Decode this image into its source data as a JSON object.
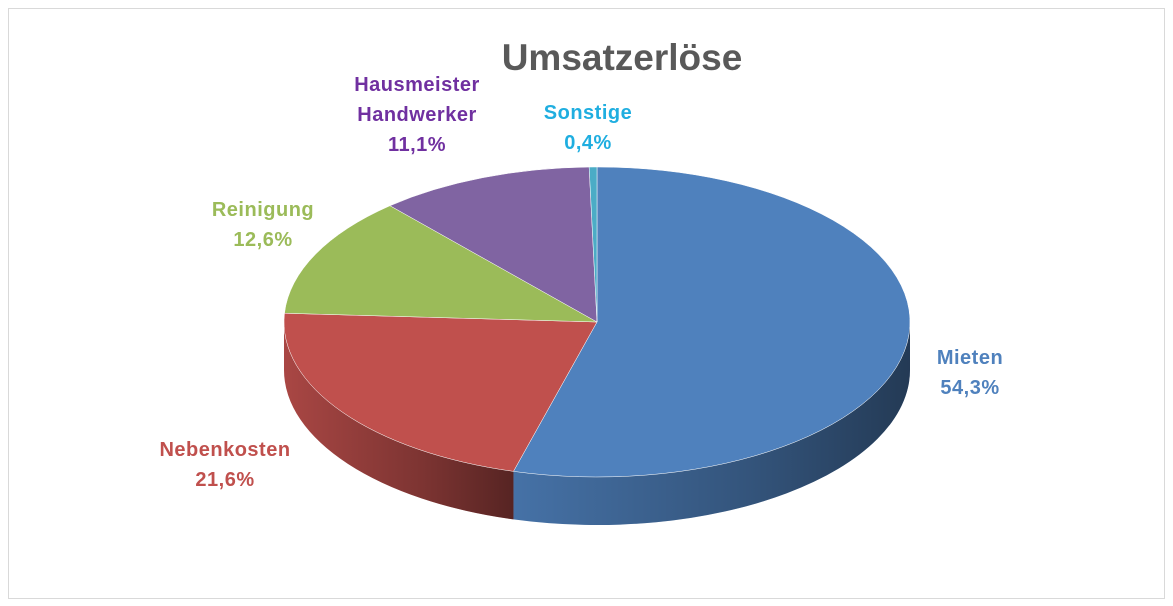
{
  "chart_data": {
    "type": "pie",
    "title": "Umsatzerlöse",
    "categories": [
      "Mieten",
      "Nebenkosten",
      "Reinigung",
      "Hausmeister Handwerker",
      "Sonstige"
    ],
    "values": [
      54.3,
      21.6,
      12.6,
      11.1,
      0.4
    ],
    "value_labels": [
      "54,3%",
      "21,6%",
      "12,6%",
      "11,1%",
      "0,4%"
    ],
    "colors": [
      "#4f81bd",
      "#c0504d",
      "#9bbb59",
      "#8064a2",
      "#4bacc6"
    ],
    "label_colors": [
      "#4f81bd",
      "#c0504d",
      "#9bbb59",
      "#7030a0",
      "#1faee0"
    ]
  }
}
